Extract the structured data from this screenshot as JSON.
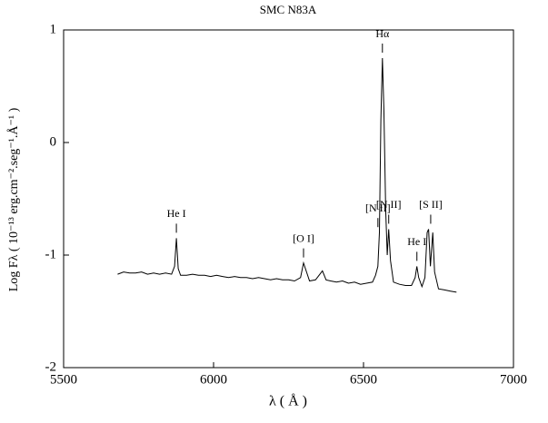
{
  "chart_data": {
    "type": "line",
    "title": "SMC N83A",
    "x_label": "λ ( Å )",
    "y_label": "Log Fλ ( 10⁻¹³ erg.cm⁻².seg⁻¹.Å⁻¹ )",
    "xlim": [
      5500,
      7000
    ],
    "xticks": [
      5500,
      6000,
      6500,
      7000
    ],
    "ylim": [
      -2,
      1
    ],
    "yticks": [
      -2,
      -1,
      0,
      1
    ],
    "series": [
      {
        "name": "SMC N83A",
        "color": "#000000",
        "x": [
          5680,
          5700,
          5720,
          5740,
          5760,
          5780,
          5800,
          5820,
          5840,
          5860,
          5870,
          5876,
          5882,
          5890,
          5910,
          5930,
          5950,
          5970,
          5990,
          6010,
          6030,
          6050,
          6070,
          6090,
          6110,
          6130,
          6150,
          6170,
          6190,
          6210,
          6230,
          6250,
          6270,
          6290,
          6300,
          6310,
          6320,
          6340,
          6363,
          6375,
          6390,
          6410,
          6430,
          6450,
          6470,
          6490,
          6510,
          6530,
          6540,
          6548,
          6553,
          6558,
          6563,
          6568,
          6574,
          6579,
          6584,
          6590,
          6600,
          6620,
          6640,
          6660,
          6672,
          6678,
          6684,
          6695,
          6705,
          6712,
          6717,
          6723,
          6731,
          6737,
          6750,
          6770,
          6790,
          6810
        ],
        "values": [
          -1.17,
          -1.15,
          -1.16,
          -1.16,
          -1.15,
          -1.17,
          -1.16,
          -1.17,
          -1.16,
          -1.17,
          -1.1,
          -0.85,
          -1.12,
          -1.18,
          -1.18,
          -1.17,
          -1.18,
          -1.18,
          -1.19,
          -1.18,
          -1.19,
          -1.2,
          -1.19,
          -1.2,
          -1.2,
          -1.21,
          -1.2,
          -1.21,
          -1.22,
          -1.21,
          -1.22,
          -1.22,
          -1.23,
          -1.2,
          -1.07,
          -1.15,
          -1.23,
          -1.22,
          -1.14,
          -1.22,
          -1.23,
          -1.24,
          -1.23,
          -1.25,
          -1.24,
          -1.26,
          -1.25,
          -1.24,
          -1.18,
          -1.1,
          -0.8,
          0.2,
          0.75,
          0.3,
          -0.6,
          -1.0,
          -0.77,
          -1.05,
          -1.24,
          -1.26,
          -1.27,
          -1.27,
          -1.2,
          -1.1,
          -1.2,
          -1.28,
          -1.2,
          -0.8,
          -0.77,
          -1.1,
          -0.8,
          -1.15,
          -1.3,
          -1.31,
          -1.32,
          -1.33
        ]
      }
    ],
    "annotations": [
      {
        "text": "He I",
        "x": 5876
      },
      {
        "text": "[O I]",
        "x": 6300
      },
      {
        "text": "[N II]",
        "x": 6548
      },
      {
        "text": "Hα",
        "x": 6563
      },
      {
        "text": "[N II]",
        "x": 6584
      },
      {
        "text": "He I",
        "x": 6678
      },
      {
        "text": "[S II]",
        "x": 6724
      }
    ]
  }
}
